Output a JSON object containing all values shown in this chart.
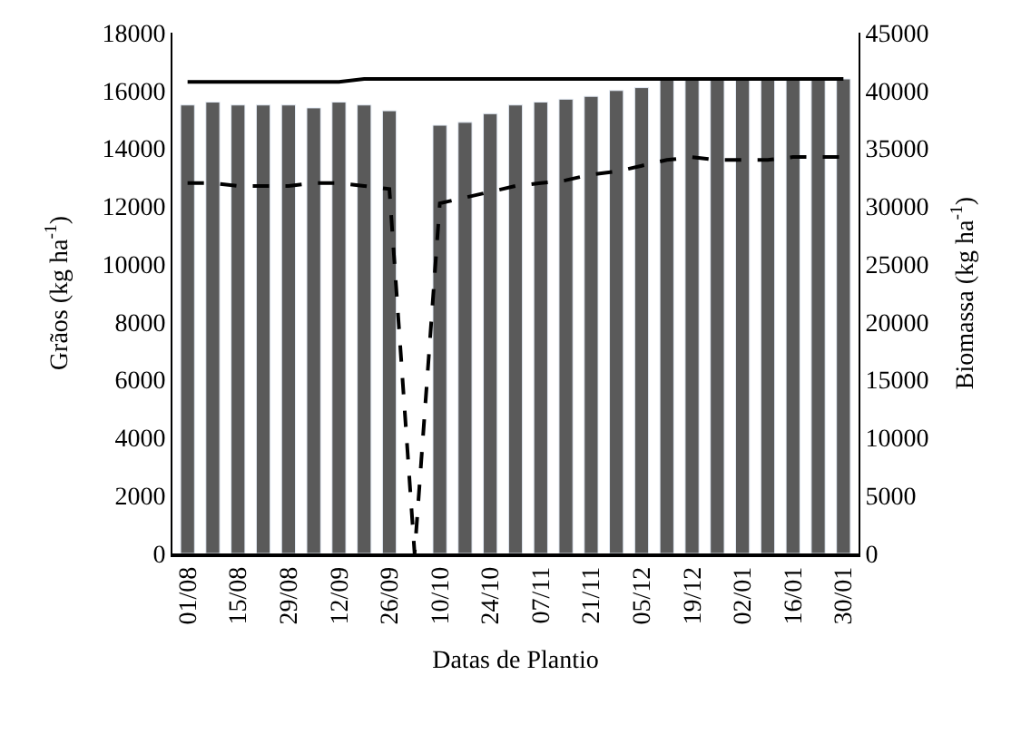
{
  "chart_data": {
    "type": "bar",
    "xlabel": "Datas de Plantio",
    "ylabel": "Grãos (kg ha$^{-1}$)",
    "y2label": "Biomassa (kg ha$^{-1}$)",
    "categories": [
      "01/08",
      null,
      "15/08",
      null,
      "29/08",
      null,
      "12/09",
      null,
      "26/09",
      null,
      "10/10",
      null,
      "24/10",
      null,
      "07/11",
      null,
      "21/11",
      null,
      "05/12",
      null,
      "19/12",
      null,
      "02/01",
      null,
      "16/01",
      null,
      "30/01"
    ],
    "series": [
      {
        "color": "#5a5a5a",
        "values": [
          15500,
          15600,
          15500,
          15500,
          15500,
          15400,
          15600,
          15500,
          15300,
          null,
          14800,
          14900,
          15200,
          15500,
          15600,
          15700,
          15800,
          16000,
          16100,
          16400,
          16400,
          16400,
          16400,
          16400,
          16400,
          16400,
          16400
        ]
      },
      {
        "type": "line",
        "color": "#000000",
        "line_style": "solid",
        "values": [
          16300,
          16300,
          16300,
          16300,
          16300,
          16300,
          16300,
          16400,
          16400,
          16400,
          16400,
          16400,
          16400,
          16400,
          16400,
          16400,
          16400,
          16400,
          16400,
          16400,
          16400,
          16400,
          16400,
          16400,
          16400,
          16400,
          16400
        ]
      },
      {
        "type": "line",
        "color": "#000000",
        "line_style": "dashed",
        "values": [
          12800,
          12800,
          12700,
          12700,
          12700,
          12800,
          12800,
          12700,
          12600,
          0,
          12100,
          12300,
          12500,
          12700,
          12800,
          12900,
          13100,
          13200,
          13400,
          13600,
          13700,
          13600,
          13600,
          13600,
          13700,
          13700,
          13700
        ]
      }
    ],
    "ylim": [
      0,
      18000
    ],
    "yticks": [
      0,
      2000,
      4000,
      6000,
      8000,
      10000,
      12000,
      14000,
      16000,
      18000
    ],
    "y2lim": [
      0,
      45000
    ],
    "y2ticks": [
      0,
      5000,
      10000,
      15000,
      20000,
      25000,
      30000,
      35000,
      40000,
      45000
    ],
    "legend": false
  }
}
